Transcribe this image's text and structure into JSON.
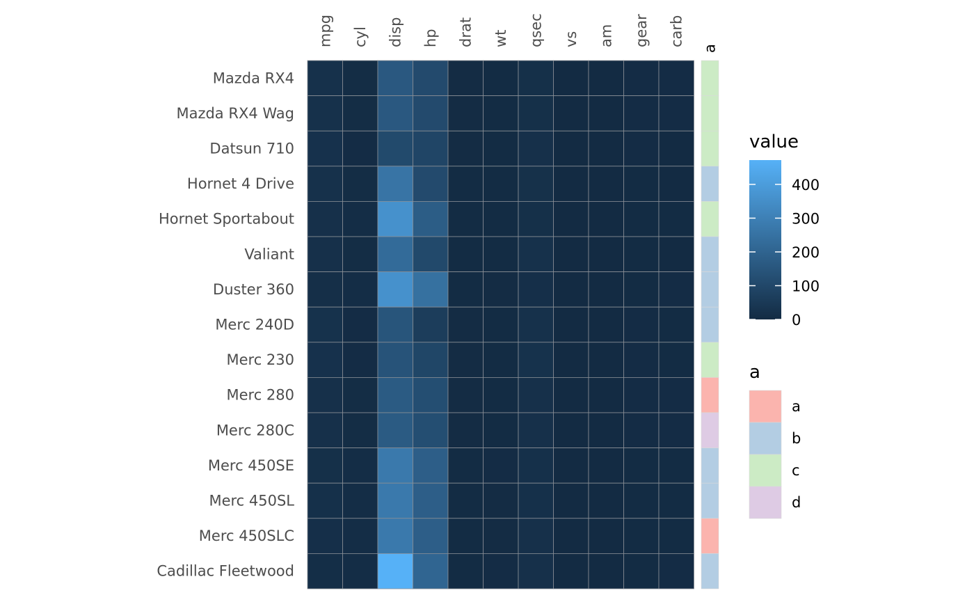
{
  "chart_data": {
    "type": "heatmap",
    "rows": [
      "Mazda RX4",
      "Mazda RX4 Wag",
      "Datsun 710",
      "Hornet 4 Drive",
      "Hornet Sportabout",
      "Valiant",
      "Duster 360",
      "Merc 240D",
      "Merc 230",
      "Merc 280",
      "Merc 280C",
      "Merc 450SE",
      "Merc 450SL",
      "Merc 450SLC",
      "Cadillac Fleetwood"
    ],
    "columns": [
      "mpg",
      "cyl",
      "disp",
      "hp",
      "drat",
      "wt",
      "qsec",
      "vs",
      "am",
      "gear",
      "carb"
    ],
    "values": [
      [
        21.0,
        6,
        160.0,
        110,
        3.9,
        2.62,
        16.46,
        0,
        1,
        4,
        4
      ],
      [
        21.0,
        6,
        160.0,
        110,
        3.9,
        2.875,
        17.02,
        0,
        1,
        4,
        4
      ],
      [
        22.8,
        4,
        108.0,
        93,
        3.85,
        2.32,
        18.61,
        1,
        1,
        4,
        1
      ],
      [
        21.4,
        6,
        258.0,
        110,
        3.08,
        3.215,
        19.44,
        1,
        0,
        3,
        1
      ],
      [
        18.7,
        8,
        360.0,
        175,
        3.15,
        3.44,
        17.02,
        0,
        0,
        3,
        2
      ],
      [
        18.1,
        6,
        225.0,
        105,
        2.76,
        3.46,
        20.22,
        1,
        0,
        3,
        1
      ],
      [
        14.3,
        8,
        360.0,
        245,
        3.21,
        3.57,
        15.84,
        0,
        0,
        3,
        4
      ],
      [
        24.4,
        4,
        146.7,
        62,
        3.69,
        3.19,
        20.0,
        1,
        0,
        4,
        2
      ],
      [
        22.8,
        4,
        140.8,
        95,
        3.92,
        3.15,
        22.9,
        1,
        0,
        4,
        2
      ],
      [
        19.2,
        6,
        167.6,
        123,
        3.92,
        3.44,
        18.3,
        1,
        0,
        4,
        4
      ],
      [
        17.8,
        6,
        167.6,
        123,
        3.92,
        3.44,
        18.9,
        1,
        0,
        4,
        4
      ],
      [
        16.4,
        8,
        275.8,
        180,
        3.07,
        4.07,
        17.4,
        0,
        0,
        3,
        3
      ],
      [
        17.3,
        8,
        275.8,
        180,
        3.07,
        3.73,
        17.6,
        0,
        0,
        3,
        3
      ],
      [
        15.2,
        8,
        275.8,
        180,
        3.07,
        3.78,
        18.0,
        0,
        0,
        3,
        3
      ],
      [
        10.4,
        8,
        472.0,
        205,
        2.93,
        5.25,
        17.98,
        0,
        0,
        3,
        4
      ]
    ],
    "annotation": {
      "name": "a",
      "values": [
        "c",
        "c",
        "c",
        "b",
        "c",
        "b",
        "b",
        "b",
        "c",
        "a",
        "d",
        "b",
        "b",
        "a",
        "b"
      ]
    },
    "color_scale": {
      "title": "value",
      "range": [
        0,
        472
      ],
      "low_color": "#132B43",
      "high_color": "#56B1F7",
      "ticks": [
        0,
        100,
        200,
        300,
        400
      ]
    },
    "annotation_legend": {
      "title": "a",
      "levels": [
        "a",
        "b",
        "c",
        "d"
      ],
      "colors": [
        "#FBB4AE",
        "#B3CDE3",
        "#CCEBC5",
        "#DECBE4"
      ]
    }
  }
}
